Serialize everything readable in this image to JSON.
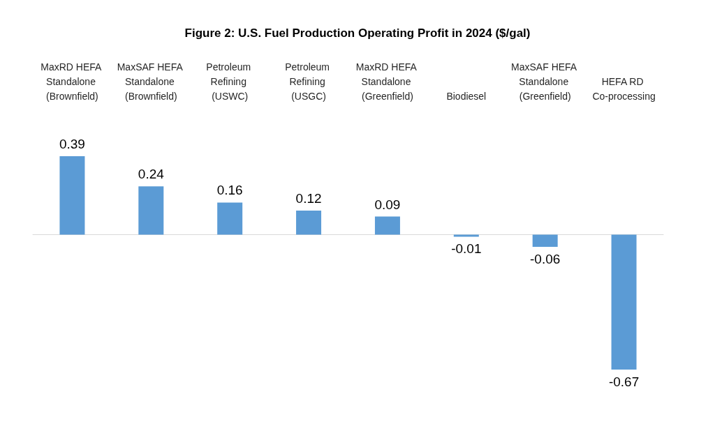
{
  "chart_data": {
    "type": "bar",
    "title": "Figure 2: U.S. Fuel Production Operating Profit in 2024 ($/gal)",
    "categories": [
      "MaxRD HEFA Standalone (Brownfield)",
      "MaxSAF HEFA Standalone (Brownfield)",
      "Petroleum Refining (USWC)",
      "Petroleum Refining (USGC)",
      "MaxRD HEFA Standalone (Greenfield)",
      "Biodiesel",
      "MaxSAF HEFA Standalone (Greenfield)",
      "HEFA RD Co-processing"
    ],
    "values": [
      0.39,
      0.24,
      0.16,
      0.12,
      0.09,
      -0.01,
      -0.06,
      -0.67
    ],
    "color": "#5b9bd5",
    "data_labels": true
  }
}
